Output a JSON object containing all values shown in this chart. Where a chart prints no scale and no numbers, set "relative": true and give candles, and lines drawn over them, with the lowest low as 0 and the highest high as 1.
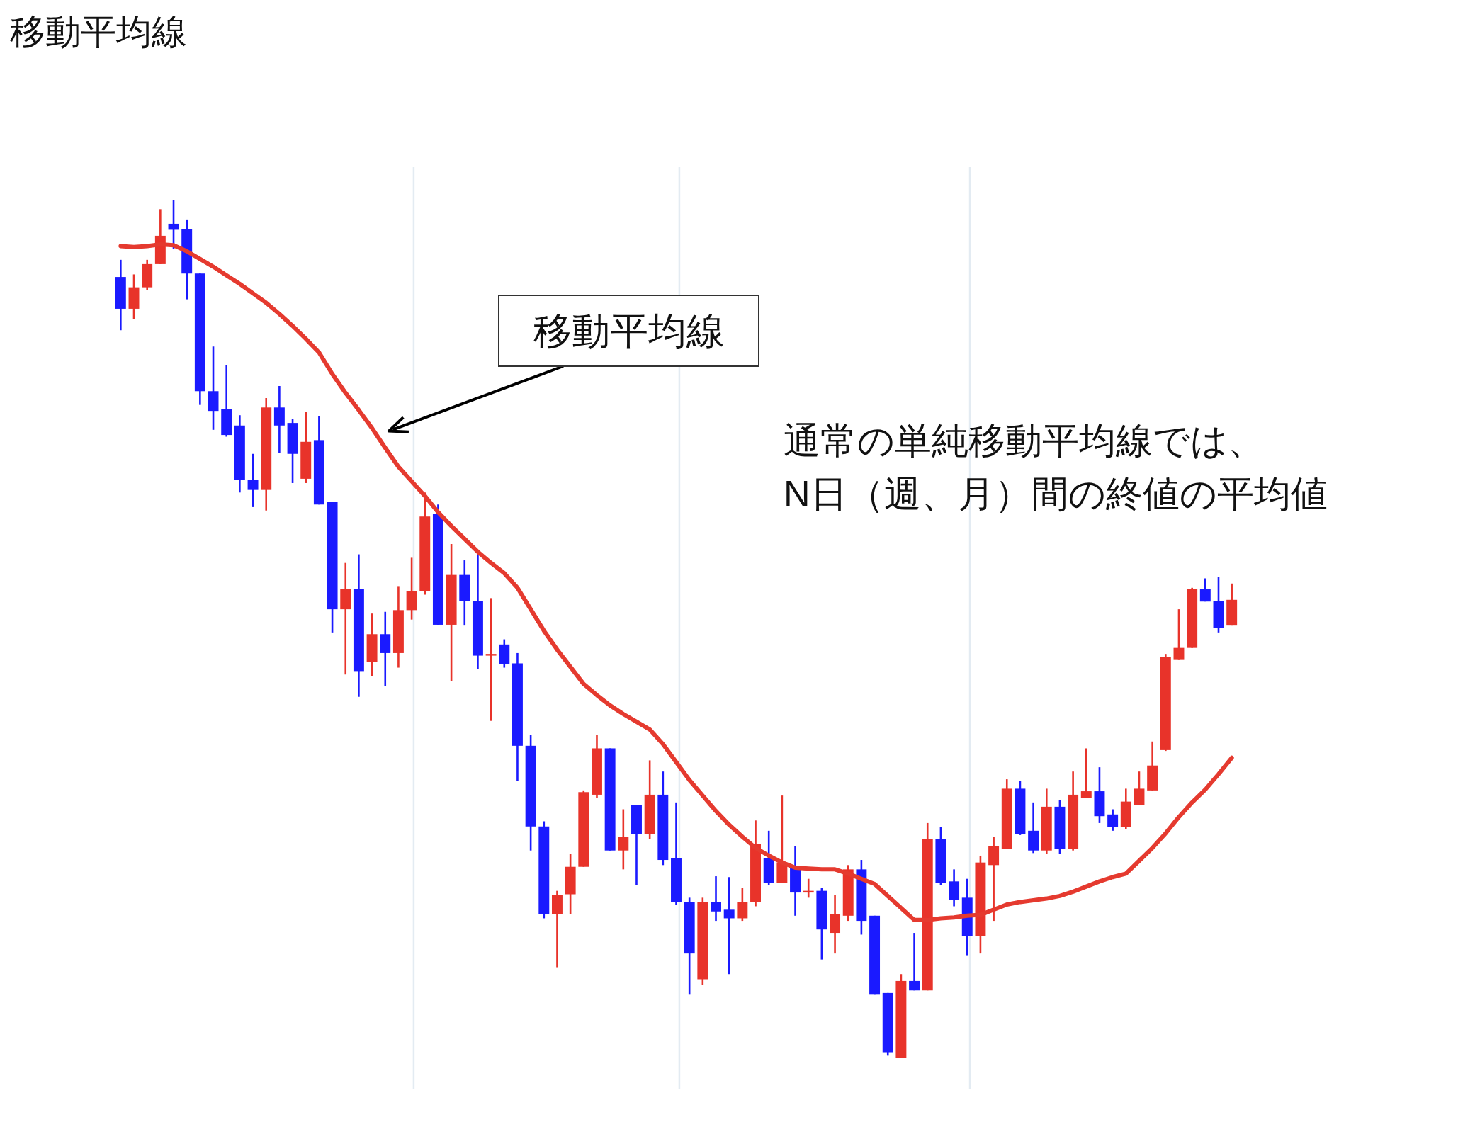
{
  "chart_data": {
    "type": "candlestick",
    "title": "移動平均線",
    "relative": true,
    "categories": [
      null,
      null,
      null,
      null,
      null,
      null,
      null,
      null,
      null,
      null,
      null,
      null,
      null,
      null,
      null,
      null,
      null,
      null,
      null,
      null,
      null,
      null,
      null,
      null,
      null,
      null,
      null,
      null,
      null,
      null,
      null,
      null,
      null,
      null,
      null,
      null,
      null,
      null,
      null,
      null,
      null,
      null,
      null,
      null,
      null,
      null,
      null,
      null,
      null,
      null,
      null,
      null,
      null,
      null,
      null,
      null,
      null,
      null,
      null,
      null,
      null,
      null,
      null,
      null,
      null,
      null,
      null,
      null,
      null,
      null,
      null,
      null,
      null,
      null,
      null,
      null,
      null,
      null,
      null,
      null,
      null,
      null,
      null,
      null,
      null
    ],
    "ohlc": [
      [
        0.91,
        0.93,
        0.848,
        0.873
      ],
      [
        0.873,
        0.913,
        0.861,
        0.898
      ],
      [
        0.898,
        0.93,
        0.895,
        0.925
      ],
      [
        0.925,
        0.989,
        0.925,
        0.958
      ],
      [
        0.972,
        1.0,
        0.943,
        0.965
      ],
      [
        0.966,
        0.977,
        0.884,
        0.914
      ],
      [
        0.914,
        0.914,
        0.761,
        0.777
      ],
      [
        0.777,
        0.829,
        0.732,
        0.754
      ],
      [
        0.756,
        0.807,
        0.724,
        0.726
      ],
      [
        0.737,
        0.749,
        0.659,
        0.674
      ],
      [
        0.674,
        0.704,
        0.642,
        0.662
      ],
      [
        0.662,
        0.769,
        0.638,
        0.758
      ],
      [
        0.758,
        0.783,
        0.705,
        0.737
      ],
      [
        0.74,
        0.745,
        0.67,
        0.704
      ],
      [
        0.675,
        0.753,
        0.67,
        0.718
      ],
      [
        0.72,
        0.748,
        0.645,
        0.645
      ],
      [
        0.648,
        0.648,
        0.496,
        0.523
      ],
      [
        0.523,
        0.577,
        0.447,
        0.547
      ],
      [
        0.547,
        0.587,
        0.421,
        0.451
      ],
      [
        0.462,
        0.518,
        0.445,
        0.494
      ],
      [
        0.494,
        0.52,
        0.434,
        0.472
      ],
      [
        0.472,
        0.55,
        0.455,
        0.522
      ],
      [
        0.522,
        0.583,
        0.511,
        0.544
      ],
      [
        0.544,
        0.659,
        0.54,
        0.631
      ],
      [
        0.634,
        0.645,
        0.505,
        0.505
      ],
      [
        0.505,
        0.599,
        0.439,
        0.563
      ],
      [
        0.563,
        0.58,
        0.504,
        0.533
      ],
      [
        0.533,
        0.589,
        0.453,
        0.469
      ],
      [
        0.469,
        0.536,
        0.393,
        0.471
      ],
      [
        0.482,
        0.488,
        0.455,
        0.459
      ],
      [
        0.46,
        0.472,
        0.323,
        0.364
      ],
      [
        0.364,
        0.377,
        0.242,
        0.27
      ],
      [
        0.27,
        0.276,
        0.163,
        0.168
      ],
      [
        0.168,
        0.195,
        0.106,
        0.19
      ],
      [
        0.191,
        0.238,
        0.168,
        0.223
      ],
      [
        0.223,
        0.312,
        0.223,
        0.31
      ],
      [
        0.307,
        0.377,
        0.303,
        0.361
      ],
      [
        0.361,
        0.361,
        0.242,
        0.242
      ],
      [
        0.242,
        0.29,
        0.22,
        0.258
      ],
      [
        0.295,
        0.295,
        0.202,
        0.261
      ],
      [
        0.261,
        0.347,
        0.255,
        0.307
      ],
      [
        0.307,
        0.334,
        0.225,
        0.231
      ],
      [
        0.233,
        0.298,
        0.179,
        0.182
      ],
      [
        0.182,
        0.187,
        0.074,
        0.122
      ],
      [
        0.092,
        0.187,
        0.085,
        0.182
      ],
      [
        0.182,
        0.212,
        0.16,
        0.171
      ],
      [
        0.173,
        0.211,
        0.098,
        0.163
      ],
      [
        0.163,
        0.198,
        0.16,
        0.182
      ],
      [
        0.182,
        0.277,
        0.177,
        0.25
      ],
      [
        0.233,
        0.265,
        0.202,
        0.204
      ],
      [
        0.204,
        0.306,
        0.204,
        0.228
      ],
      [
        0.223,
        0.247,
        0.166,
        0.193
      ],
      [
        0.193,
        0.209,
        0.187,
        0.195
      ],
      [
        0.195,
        0.198,
        0.115,
        0.15
      ],
      [
        0.146,
        0.19,
        0.122,
        0.168
      ],
      [
        0.166,
        0.225,
        0.16,
        0.22
      ],
      [
        0.22,
        0.231,
        0.144,
        0.16
      ],
      [
        0.166,
        0.166,
        0.074,
        0.074
      ],
      [
        0.076,
        0.076,
        0.003,
        0.007
      ],
      [
        0.0,
        0.098,
        0.0,
        0.09
      ],
      [
        0.09,
        0.146,
        0.079,
        0.079
      ],
      [
        0.079,
        0.274,
        0.079,
        0.255
      ],
      [
        0.255,
        0.269,
        0.202,
        0.204
      ],
      [
        0.206,
        0.22,
        0.177,
        0.184
      ],
      [
        0.187,
        0.209,
        0.12,
        0.142
      ],
      [
        0.142,
        0.236,
        0.122,
        0.228
      ],
      [
        0.225,
        0.258,
        0.16,
        0.247
      ],
      [
        0.244,
        0.325,
        0.244,
        0.314
      ],
      [
        0.314,
        0.323,
        0.26,
        0.261
      ],
      [
        0.265,
        0.298,
        0.239,
        0.242
      ],
      [
        0.242,
        0.314,
        0.238,
        0.293
      ],
      [
        0.293,
        0.301,
        0.238,
        0.244
      ],
      [
        0.244,
        0.334,
        0.242,
        0.307
      ],
      [
        0.303,
        0.361,
        0.303,
        0.311
      ],
      [
        0.311,
        0.339,
        0.274,
        0.282
      ],
      [
        0.284,
        0.29,
        0.265,
        0.269
      ],
      [
        0.269,
        0.314,
        0.267,
        0.299
      ],
      [
        0.295,
        0.334,
        0.295,
        0.314
      ],
      [
        0.312,
        0.369,
        0.312,
        0.341
      ],
      [
        0.359,
        0.471,
        0.358,
        0.467
      ],
      [
        0.464,
        0.523,
        0.464,
        0.478
      ],
      [
        0.478,
        0.548,
        0.478,
        0.547
      ],
      [
        0.547,
        0.559,
        0.532,
        0.532
      ],
      [
        0.533,
        0.561,
        0.496,
        0.501
      ],
      [
        0.504,
        0.553,
        0.504,
        0.534
      ]
    ],
    "colors": [
      "#1a1aff",
      "#e8332a",
      "#e8332a",
      "#e8332a",
      "#1a1aff",
      "#1a1aff",
      "#1a1aff",
      "#1a1aff",
      "#1a1aff",
      "#1a1aff",
      "#1a1aff",
      "#e8332a",
      "#1a1aff",
      "#1a1aff",
      "#e8332a",
      "#1a1aff",
      "#1a1aff",
      "#e8332a",
      "#1a1aff",
      "#e8332a",
      "#1a1aff",
      "#e8332a",
      "#e8332a",
      "#e8332a",
      "#1a1aff",
      "#e8332a",
      "#1a1aff",
      "#1a1aff",
      "#e8332a",
      "#1a1aff",
      "#1a1aff",
      "#1a1aff",
      "#1a1aff",
      "#e8332a",
      "#e8332a",
      "#e8332a",
      "#e8332a",
      "#1a1aff",
      "#e8332a",
      "#1a1aff",
      "#e8332a",
      "#1a1aff",
      "#1a1aff",
      "#1a1aff",
      "#e8332a",
      "#1a1aff",
      "#1a1aff",
      "#e8332a",
      "#e8332a",
      "#1a1aff",
      "#e8332a",
      "#1a1aff",
      "#e8332a",
      "#1a1aff",
      "#e8332a",
      "#e8332a",
      "#1a1aff",
      "#1a1aff",
      "#1a1aff",
      "#e8332a",
      "#1a1aff",
      "#e8332a",
      "#1a1aff",
      "#1a1aff",
      "#1a1aff",
      "#e8332a",
      "#e8332a",
      "#e8332a",
      "#1a1aff",
      "#1a1aff",
      "#e8332a",
      "#1a1aff",
      "#e8332a",
      "#e8332a",
      "#1a1aff",
      "#1a1aff",
      "#e8332a",
      "#e8332a",
      "#e8332a",
      "#e8332a",
      "#e8332a",
      "#e8332a",
      "#1a1aff",
      "#1a1aff",
      "#e8332a"
    ],
    "series": [
      {
        "type": "line",
        "color": "#e53a2f",
        "values": [
          0.946,
          0.945,
          0.946,
          0.948,
          0.947,
          0.94,
          0.931,
          0.922,
          0.912,
          0.902,
          0.891,
          0.88,
          0.867,
          0.853,
          0.838,
          0.822,
          0.797,
          0.775,
          0.755,
          0.734,
          0.711,
          0.689,
          0.672,
          0.655,
          0.636,
          0.62,
          0.605,
          0.59,
          0.577,
          0.565,
          0.548,
          0.523,
          0.498,
          0.476,
          0.456,
          0.436,
          0.423,
          0.411,
          0.401,
          0.392,
          0.383,
          0.366,
          0.345,
          0.324,
          0.306,
          0.288,
          0.272,
          0.258,
          0.245,
          0.236,
          0.228,
          0.222,
          0.221,
          0.22,
          0.22,
          0.215,
          0.209,
          0.203,
          0.189,
          0.175,
          0.161,
          0.161,
          0.163,
          0.164,
          0.166,
          0.167,
          0.173,
          0.179,
          0.182,
          0.184,
          0.186,
          0.189,
          0.194,
          0.2,
          0.206,
          0.211,
          0.215,
          0.23,
          0.245,
          0.262,
          0.281,
          0.298,
          0.313,
          0.331,
          0.35
        ]
      }
    ],
    "annotations": [
      "移動平均線",
      "通常の単純移動平均線では、\nN日（週、月）間の終値の平均値"
    ]
  }
}
